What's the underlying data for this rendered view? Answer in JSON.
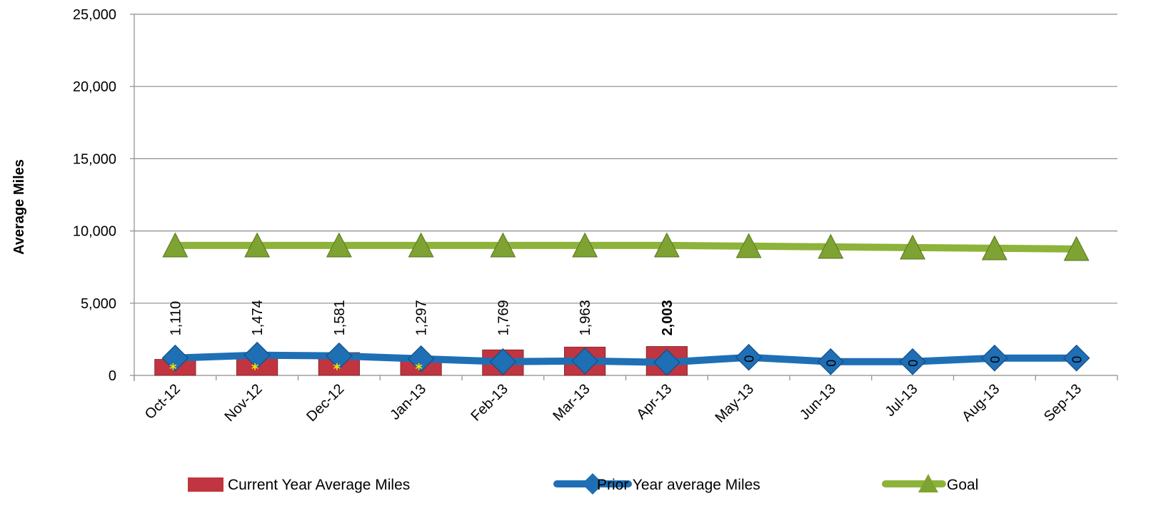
{
  "chart_data": {
    "type": "bar",
    "ylabel": "Average Miles",
    "xlabel": "",
    "title": "",
    "ylim": [
      0,
      25000
    ],
    "y_ticks": [
      0,
      5000,
      10000,
      15000,
      20000,
      25000
    ],
    "y_tick_labels": [
      "0",
      "5,000",
      "10,000",
      "15,000",
      "20,000",
      "25,000"
    ],
    "categories": [
      "Oct-12",
      "Nov-12",
      "Dec-12",
      "Jan-13",
      "Feb-13",
      "Mar-13",
      "Apr-13",
      "May-13",
      "Jun-13",
      "Jul-13",
      "Aug-13",
      "Sep-13"
    ],
    "grid": true,
    "legend_position": "bottom",
    "series": [
      {
        "name": "Current Year Average Miles",
        "type": "bar",
        "color": "#c0353f",
        "values": [
          1110,
          1474,
          1581,
          1297,
          1769,
          1963,
          2003,
          0,
          0,
          0,
          0,
          0
        ],
        "labels": [
          "1,110",
          "1,474",
          "1,581",
          "1,297",
          "1,769",
          "1,963",
          "2,003",
          "0",
          "0",
          "0",
          "0",
          "0"
        ]
      },
      {
        "name": "Prior Year average Miles",
        "type": "line",
        "marker": "diamond",
        "color": "#1f6fb5",
        "values": [
          1200,
          1400,
          1350,
          1150,
          950,
          1000,
          900,
          1250,
          950,
          950,
          1200,
          1200
        ]
      },
      {
        "name": "Goal",
        "type": "line",
        "marker": "triangle",
        "color": "#8db33a",
        "values": [
          9000,
          9000,
          9000,
          9000,
          9000,
          9000,
          9000,
          8950,
          8900,
          8850,
          8800,
          8750
        ]
      }
    ],
    "annotations": {
      "symbol": "*",
      "categories": [
        "Oct-12",
        "Nov-12",
        "Dec-12",
        "Jan-13"
      ],
      "color": "#f3e600"
    }
  }
}
